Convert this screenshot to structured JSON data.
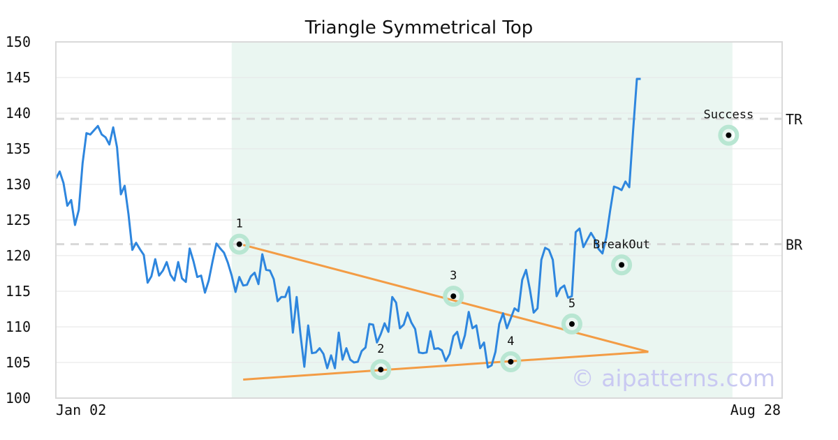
{
  "chart_data": {
    "type": "line",
    "title": "Triangle Symmetrical Top",
    "watermark": "© aipatterns.com",
    "ylim": [
      100,
      150
    ],
    "yticks": [
      "150",
      "145",
      "140",
      "135",
      "130",
      "125",
      "120",
      "115",
      "110",
      "105",
      "100"
    ],
    "xlim": [
      0,
      190
    ],
    "xtick_labels": {
      "start": "Jan 02",
      "end": "Aug 28"
    },
    "grid": true,
    "series": [
      {
        "color": "#2e86de",
        "values": [
          130.8,
          131.8,
          130.2,
          127.0,
          127.8,
          124.3,
          126.4,
          133.0,
          137.2,
          137.0,
          137.6,
          138.2,
          137.0,
          136.6,
          135.6,
          138.0,
          135.2,
          128.6,
          129.8,
          125.8,
          120.8,
          121.8,
          120.9,
          120.1,
          116.2,
          117.1,
          119.5,
          117.2,
          117.9,
          119.1,
          117.3,
          116.5,
          119.1,
          116.8,
          116.3,
          121.0,
          119.2,
          117.0,
          117.2,
          114.8,
          116.5,
          119.2,
          121.7,
          121.0,
          120.4,
          119.0,
          117.2,
          114.9,
          117.0,
          115.8,
          115.9,
          117.1,
          117.6,
          116.0,
          120.2,
          118.0,
          117.9,
          116.7,
          113.6,
          114.2,
          114.2,
          115.6,
          109.2,
          114.2,
          108.9,
          104.4,
          110.2,
          106.3,
          106.4,
          107.0,
          106.2,
          104.2,
          106.0,
          104.2,
          109.2,
          105.4,
          107.0,
          105.4,
          105.0,
          105.1,
          106.6,
          107.1,
          110.4,
          110.3,
          107.8,
          109.0,
          110.5,
          109.3,
          114.2,
          113.4,
          109.8,
          110.3,
          112.0,
          110.6,
          109.7,
          106.4,
          106.3,
          106.4,
          109.4,
          106.9,
          107.0,
          106.7,
          105.2,
          106.2,
          108.7,
          109.3,
          107.0,
          108.8,
          112.1,
          109.8,
          110.2,
          107.0,
          107.8,
          104.3,
          104.6,
          106.5,
          110.4,
          111.9,
          109.8,
          111.2,
          112.6,
          112.2,
          116.6,
          118.0,
          115.3,
          112.0,
          112.6,
          119.4,
          121.1,
          120.8,
          119.4,
          114.3,
          115.4,
          115.8,
          114.1,
          114.3,
          123.3,
          123.8,
          121.2,
          122.2,
          123.2,
          122.3,
          120.9,
          120.3,
          122.6,
          126.3,
          129.7,
          129.5,
          129.2,
          130.4,
          129.6,
          137.4,
          144.8,
          144.8
        ]
      }
    ],
    "shaded_region": {
      "x_start": 46,
      "x_end": 177,
      "color": "#eaf6f1"
    },
    "triangle_lines": [
      {
        "color": "#f39c45",
        "points": [
          [
            49,
            121.5
          ],
          [
            155,
            106.5
          ]
        ]
      },
      {
        "color": "#f39c45",
        "points": [
          [
            49,
            102.6
          ],
          [
            155,
            106.5
          ]
        ]
      }
    ],
    "reference_lines": [
      {
        "label": "TR",
        "y": 139.2,
        "color": "#d8d8d8"
      },
      {
        "label": "BR",
        "y": 121.6,
        "color": "#d8d8d8"
      }
    ],
    "annotations": [
      {
        "label": "1",
        "x": 48,
        "y": 121.6
      },
      {
        "label": "2",
        "x": 85,
        "y": 104.0
      },
      {
        "label": "3",
        "x": 104,
        "y": 114.3
      },
      {
        "label": "4",
        "x": 119,
        "y": 105.1
      },
      {
        "label": "5",
        "x": 135,
        "y": 110.4
      },
      {
        "label": "BreakOut",
        "x": 148,
        "y": 118.7
      },
      {
        "label": "Success",
        "x": 176,
        "y": 136.9
      }
    ]
  }
}
